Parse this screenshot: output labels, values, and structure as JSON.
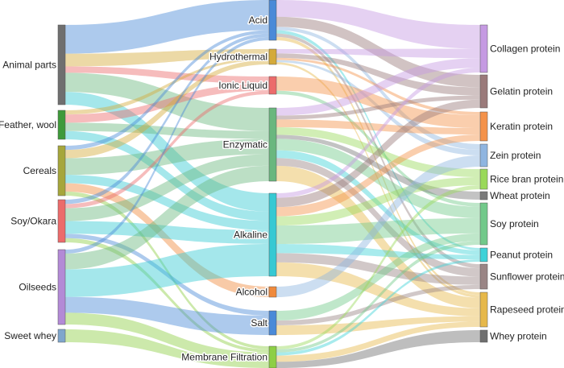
{
  "sources": [
    {
      "id": "animal",
      "label": "Animal parts",
      "color": "#6f6f6f"
    },
    {
      "id": "feather",
      "label": "Feather, wool",
      "color": "#3e9a3a"
    },
    {
      "id": "cereals",
      "label": "Cereals",
      "color": "#a6a63b"
    },
    {
      "id": "soy",
      "label": "Soy/Okara",
      "color": "#ec6b6b"
    },
    {
      "id": "oilseeds",
      "label": "Oilseeds",
      "color": "#b38ad6"
    },
    {
      "id": "whey",
      "label": "Sweet whey",
      "color": "#7fa6cc"
    }
  ],
  "methods": [
    {
      "id": "acid",
      "label": "Acid",
      "color": "#4a8ad8"
    },
    {
      "id": "hydro",
      "label": "Hydrothermal",
      "color": "#d4aa3a"
    },
    {
      "id": "ionic",
      "label": "Ionic Liquid",
      "color": "#ec6b6b"
    },
    {
      "id": "enzymatic",
      "label": "Enzymatic",
      "color": "#6ab77e"
    },
    {
      "id": "alkaline",
      "label": "Alkaline",
      "color": "#36c9d3"
    },
    {
      "id": "alcohol",
      "label": "Alcohol",
      "color": "#f08a3c"
    },
    {
      "id": "salt",
      "label": "Salt",
      "color": "#4a8ad8"
    },
    {
      "id": "membrane",
      "label": "Membrane Filtration",
      "color": "#8dcf45"
    }
  ],
  "products": [
    {
      "id": "collagen",
      "label": "Collagen protein",
      "color": "#c59ae2"
    },
    {
      "id": "gelatin",
      "label": "Gelatin protein",
      "color": "#9a7a7a"
    },
    {
      "id": "keratin",
      "label": "Keratin protein",
      "color": "#f4924a"
    },
    {
      "id": "zein",
      "label": "Zein protein",
      "color": "#8fb5e0"
    },
    {
      "id": "ricebran",
      "label": "Rice bran protein",
      "color": "#9ad95a"
    },
    {
      "id": "wheat",
      "label": "Wheat protein",
      "color": "#7a7a7a"
    },
    {
      "id": "soyp",
      "label": "Soy protein",
      "color": "#72c98a"
    },
    {
      "id": "peanut",
      "label": "Peanut protein",
      "color": "#3ed2d8"
    },
    {
      "id": "sunflower",
      "label": "Sunflower protein",
      "color": "#9a8585"
    },
    {
      "id": "rapeseed",
      "label": "Rapeseed protein",
      "color": "#e6b84a"
    },
    {
      "id": "wheyp",
      "label": "Whey protein",
      "color": "#6f6f6f"
    }
  ],
  "flows_source_to_method": [
    {
      "from": "animal",
      "to": "acid",
      "value": 9
    },
    {
      "from": "animal",
      "to": "hydro",
      "value": 4
    },
    {
      "from": "animal",
      "to": "ionic",
      "value": 2
    },
    {
      "from": "animal",
      "to": "enzymatic",
      "value": 6
    },
    {
      "from": "animal",
      "to": "alkaline",
      "value": 4
    },
    {
      "from": "feather",
      "to": "hydro",
      "value": 1
    },
    {
      "from": "feather",
      "to": "ionic",
      "value": 2
    },
    {
      "from": "feather",
      "to": "enzymatic",
      "value": 2
    },
    {
      "from": "feather",
      "to": "alkaline",
      "value": 2
    },
    {
      "from": "cereals",
      "to": "acid",
      "value": 1
    },
    {
      "from": "cereals",
      "to": "hydro",
      "value": 2
    },
    {
      "from": "cereals",
      "to": "enzymatic",
      "value": 4
    },
    {
      "from": "cereals",
      "to": "alkaline",
      "value": 2
    },
    {
      "from": "cereals",
      "to": "alcohol",
      "value": 2
    },
    {
      "from": "cereals",
      "to": "membrane",
      "value": 1
    },
    {
      "from": "soy",
      "to": "acid",
      "value": 1
    },
    {
      "from": "soy",
      "to": "ionic",
      "value": 1
    },
    {
      "from": "soy",
      "to": "enzymatic",
      "value": 3
    },
    {
      "from": "soy",
      "to": "alkaline",
      "value": 3
    },
    {
      "from": "soy",
      "to": "salt",
      "value": 1
    },
    {
      "from": "soy",
      "to": "membrane",
      "value": 1
    },
    {
      "from": "oilseeds",
      "to": "acid",
      "value": 1
    },
    {
      "from": "oilseeds",
      "to": "enzymatic",
      "value": 4
    },
    {
      "from": "oilseeds",
      "to": "alkaline",
      "value": 7
    },
    {
      "from": "oilseeds",
      "to": "salt",
      "value": 4
    },
    {
      "from": "oilseeds",
      "to": "membrane",
      "value": 3
    },
    {
      "from": "whey",
      "to": "membrane",
      "value": 2
    }
  ],
  "flows_method_to_product": [
    {
      "from": "acid",
      "to": "collagen",
      "value": 5
    },
    {
      "from": "acid",
      "to": "gelatin",
      "value": 3
    },
    {
      "from": "acid",
      "to": "zein",
      "value": 1
    },
    {
      "from": "acid",
      "to": "peanut",
      "value": 1
    },
    {
      "from": "acid",
      "to": "sunflower",
      "value": 1
    },
    {
      "from": "acid",
      "to": "rapeseed",
      "value": 1
    },
    {
      "from": "hydro",
      "to": "collagen",
      "value": 2
    },
    {
      "from": "hydro",
      "to": "gelatin",
      "value": 2
    },
    {
      "from": "hydro",
      "to": "keratin",
      "value": 1
    },
    {
      "from": "hydro",
      "to": "rapeseed",
      "value": 1
    },
    {
      "from": "hydro",
      "to": "zein",
      "value": 1
    },
    {
      "from": "ionic",
      "to": "keratin",
      "value": 4
    },
    {
      "from": "ionic",
      "to": "soyp",
      "value": 1
    },
    {
      "from": "enzymatic",
      "to": "collagen",
      "value": 2
    },
    {
      "from": "enzymatic",
      "to": "gelatin",
      "value": 1
    },
    {
      "from": "enzymatic",
      "to": "keratin",
      "value": 2
    },
    {
      "from": "enzymatic",
      "to": "ricebran",
      "value": 2
    },
    {
      "from": "enzymatic",
      "to": "wheat",
      "value": 1
    },
    {
      "from": "enzymatic",
      "to": "soyp",
      "value": 3
    },
    {
      "from": "enzymatic",
      "to": "peanut",
      "value": 2
    },
    {
      "from": "enzymatic",
      "to": "sunflower",
      "value": 2
    },
    {
      "from": "enzymatic",
      "to": "rapeseed",
      "value": 4
    },
    {
      "from": "alkaline",
      "to": "collagen",
      "value": 1
    },
    {
      "from": "alkaline",
      "to": "gelatin",
      "value": 2
    },
    {
      "from": "alkaline",
      "to": "keratin",
      "value": 2
    },
    {
      "from": "alkaline",
      "to": "ricebran",
      "value": 2
    },
    {
      "from": "alkaline",
      "to": "soyp",
      "value": 4
    },
    {
      "from": "alkaline",
      "to": "peanut",
      "value": 2
    },
    {
      "from": "alkaline",
      "to": "sunflower",
      "value": 2
    },
    {
      "from": "alkaline",
      "to": "rapeseed",
      "value": 3
    },
    {
      "from": "alcohol",
      "to": "zein",
      "value": 2
    },
    {
      "from": "salt",
      "to": "soyp",
      "value": 2
    },
    {
      "from": "salt",
      "to": "sunflower",
      "value": 1
    },
    {
      "from": "salt",
      "to": "rapeseed",
      "value": 2
    },
    {
      "from": "membrane",
      "to": "ricebran",
      "value": 1
    },
    {
      "from": "membrane",
      "to": "soyp",
      "value": 1
    },
    {
      "from": "membrane",
      "to": "peanut",
      "value": 1
    },
    {
      "from": "membrane",
      "to": "rapeseed",
      "value": 2
    },
    {
      "from": "membrane",
      "to": "wheyp",
      "value": 2
    }
  ]
}
